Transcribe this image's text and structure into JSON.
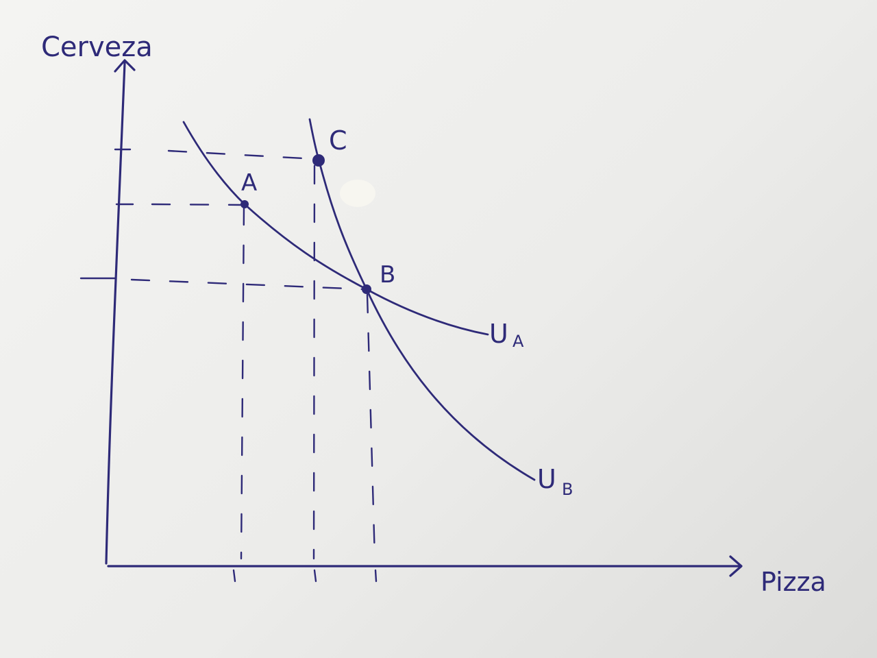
{
  "axes": {
    "y_label": "Cerveza",
    "x_label": "Pizza"
  },
  "points": [
    {
      "id": "A",
      "label": "A"
    },
    {
      "id": "B",
      "label": "B"
    },
    {
      "id": "C",
      "label": "C"
    }
  ],
  "curves": [
    {
      "id": "UA",
      "label_main": "U",
      "label_sub": "A"
    },
    {
      "id": "UB",
      "label_main": "U",
      "label_sub": "B"
    }
  ],
  "colors": {
    "ink": "#2e2a78",
    "paper": "#f0f0ee"
  }
}
